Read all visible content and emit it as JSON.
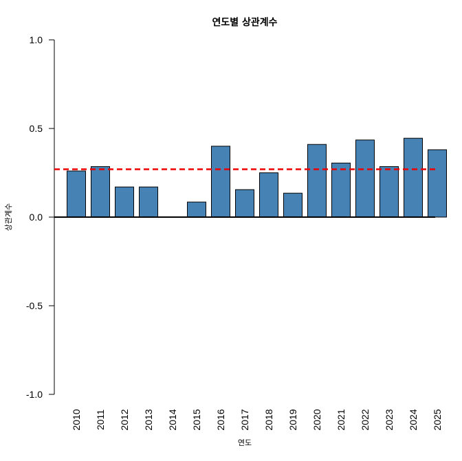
{
  "chart_data": {
    "type": "bar",
    "title": "연도별 상관계수",
    "xlabel": "연도",
    "ylabel": "상관계수",
    "categories": [
      "2010",
      "2011",
      "2012",
      "2013",
      "2014",
      "2015",
      "2016",
      "2017",
      "2018",
      "2019",
      "2020",
      "2021",
      "2022",
      "2023",
      "2024",
      "2025"
    ],
    "values": [
      0.26,
      0.285,
      0.17,
      0.17,
      0.0,
      0.085,
      0.4,
      0.155,
      0.25,
      0.135,
      0.41,
      0.305,
      0.435,
      0.285,
      0.445,
      0.38
    ],
    "ylim": [
      -1.0,
      1.0
    ],
    "yticks": [
      -1.0,
      -0.5,
      0.0,
      0.5,
      1.0
    ],
    "ytick_labels": [
      "-1.0",
      "-0.5",
      "0.0",
      "0.5",
      "1.0"
    ],
    "reference_line": {
      "value": 0.27,
      "style": "dashed",
      "color": "#ee0000"
    },
    "zero_line": true,
    "bar_color": "#4682b4",
    "bar_edge_color": "#000000",
    "grid": false
  }
}
